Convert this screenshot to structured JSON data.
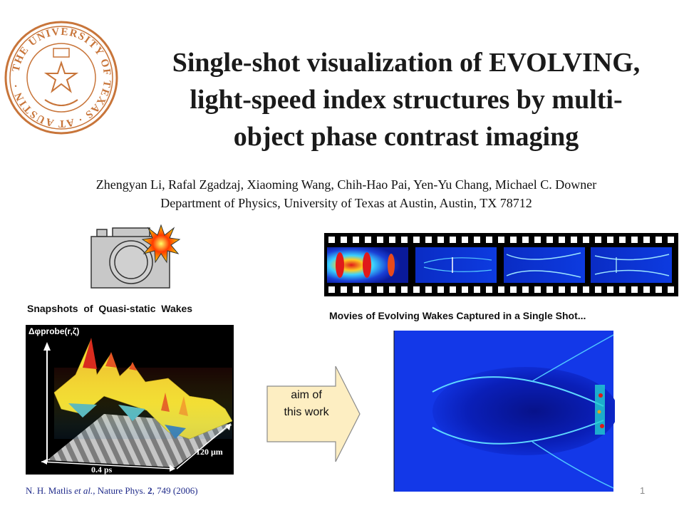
{
  "slide": {
    "title_lines": [
      "Single-shot visualization of EVOLVING,",
      "light-speed index structures by multi-",
      "object phase contrast imaging"
    ],
    "authors": "Zhengyan Li, Rafal Zgadzaj, Xiaoming Wang, Chih-Hao Pai, Yen-Yu Chang, Michael C. Downer",
    "affiliation": "Department of Physics, University of Texas at Austin, Austin, TX 78712",
    "logo": {
      "name": "university-of-texas-seal",
      "ring_text": "THE UNIVERSITY OF TEXAS AT AUSTIN",
      "color": "#c8753a"
    },
    "left_panel": {
      "caption": "Snapshots  of  Quasi-static  Wakes",
      "z_axis_label": "Δφprobe(r,ζ)",
      "x_axis_label": "0.4 ps",
      "y_axis_label": "120 μm",
      "camera_icon": "camera-icon",
      "flash_icon": "flash-icon"
    },
    "right_panel": {
      "caption": "Movies of Evolving Wakes Captured in a Single Shot...",
      "filmstrip_icon": "filmstrip-icon",
      "frames": 4
    },
    "arrow": {
      "label_line1": "aim of",
      "label_line2": "this work",
      "fill": "#fdeec2"
    },
    "citation": {
      "authors": "N. H. Matlis ",
      "etal": "et al.",
      "journal": ", Nature Phys. ",
      "volume": "2",
      "pages_year": ", 749 (2006)"
    },
    "page_number": "1"
  }
}
